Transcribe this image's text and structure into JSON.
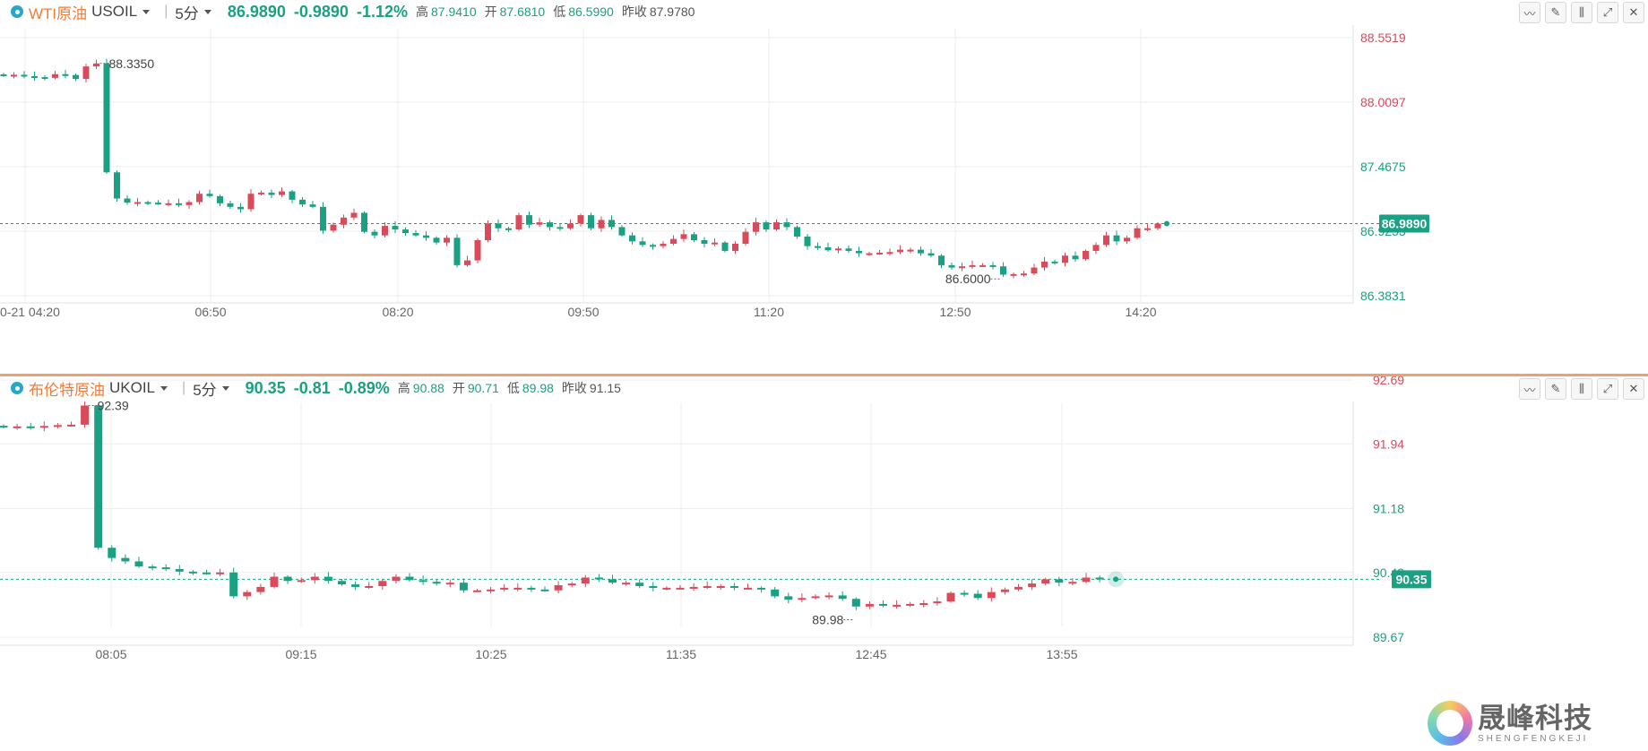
{
  "colors": {
    "up": "#d94a5b",
    "down": "#1aa083",
    "grid": "#eeeeee",
    "accent": "#f07c3a"
  },
  "panels": [
    {
      "name": "WTI原油",
      "code": "USOIL",
      "interval": "5分",
      "price": "86.9890",
      "change": "-0.9890",
      "change_pct": "-1.12%",
      "high_label": "高",
      "high": "87.9410",
      "open_label": "开",
      "open": "87.6810",
      "low_label": "低",
      "low": "86.5990",
      "prev_label": "昨收",
      "prev": "87.9780",
      "current_price_label": "86.9890",
      "max_label": "88.3350",
      "min_label": "86.6000",
      "tools": [
        "indicator-icon",
        "draw-icon",
        "candle-type-icon",
        "fullscreen-icon",
        "close-icon"
      ],
      "chart_data": {
        "type": "candlestick",
        "ylim": [
          86.3831,
          88.5519
        ],
        "y_ticks": [
          "88.5519",
          "88.0097",
          "87.4675",
          "86.9253",
          "86.3831"
        ],
        "x_ticks": [
          "0-21 04:20",
          "06:50",
          "08:20",
          "09:50",
          "11:20",
          "12:50",
          "14:20"
        ],
        "current": 86.989,
        "max_point": 88.335,
        "min_point": 86.6,
        "closes": [
          88.235,
          88.24,
          88.228,
          88.22,
          88.214,
          88.245,
          88.238,
          88.205,
          88.31,
          88.335,
          87.42,
          87.2,
          87.165,
          87.17,
          87.165,
          87.16,
          87.16,
          87.145,
          87.17,
          87.24,
          87.22,
          87.16,
          87.13,
          87.11,
          87.24,
          87.25,
          87.23,
          87.26,
          87.19,
          87.15,
          87.13,
          86.93,
          86.98,
          87.04,
          87.08,
          86.92,
          86.89,
          86.97,
          86.94,
          86.91,
          86.89,
          86.87,
          86.83,
          86.87,
          86.64,
          86.68,
          86.85,
          86.99,
          86.95,
          86.94,
          87.06,
          86.98,
          87.0,
          86.96,
          86.95,
          86.99,
          87.06,
          86.95,
          87.02,
          86.96,
          86.89,
          86.84,
          86.81,
          86.8,
          86.82,
          86.86,
          86.9,
          86.85,
          86.82,
          86.83,
          86.76,
          86.82,
          86.92,
          87.0,
          86.94,
          87.0,
          86.96,
          86.88,
          86.8,
          86.79,
          86.765,
          86.78,
          86.76,
          86.74,
          86.74,
          86.745,
          86.75,
          86.77,
          86.77,
          86.74,
          86.72,
          86.64,
          86.62,
          86.63,
          86.64,
          86.64,
          86.63,
          86.56,
          86.565,
          86.57,
          86.62,
          86.67,
          86.66,
          86.72,
          86.69,
          86.76,
          86.81,
          86.89,
          86.84,
          86.87,
          86.95,
          86.95,
          86.989
        ]
      }
    },
    {
      "name": "布伦特原油",
      "code": "UKOIL",
      "interval": "5分",
      "price": "90.35",
      "change": "-0.81",
      "change_pct": "-0.89%",
      "high_label": "高",
      "high": "90.88",
      "open_label": "开",
      "open": "90.71",
      "low_label": "低",
      "low": "89.98",
      "prev_label": "昨收",
      "prev": "91.15",
      "current_price_label": "90.35",
      "max_label": "92.39",
      "min_label": "89.98",
      "tools": [
        "indicator-icon",
        "draw-icon",
        "candle-type-icon",
        "fullscreen-icon",
        "close-icon"
      ],
      "chart_data": {
        "type": "candlestick",
        "ylim": [
          89.67,
          92.69
        ],
        "y_ticks": [
          "92.69",
          "91.94",
          "91.18",
          "90.43",
          "89.67"
        ],
        "x_ticks": [
          "08:05",
          "09:15",
          "10:25",
          "11:35",
          "12:45",
          "13:55"
        ],
        "current": 90.35,
        "max_point": 92.39,
        "min_point": 89.98,
        "closes": [
          92.14,
          92.145,
          92.13,
          92.15,
          92.16,
          92.165,
          92.39,
          90.72,
          90.6,
          90.56,
          90.5,
          90.49,
          90.47,
          90.44,
          90.43,
          90.42,
          90.43,
          90.15,
          90.2,
          90.26,
          90.38,
          90.33,
          90.34,
          90.38,
          90.33,
          90.29,
          90.26,
          90.27,
          90.33,
          90.38,
          90.34,
          90.32,
          90.3,
          90.31,
          90.22,
          90.22,
          90.23,
          90.25,
          90.25,
          90.23,
          90.22,
          90.28,
          90.3,
          90.37,
          90.35,
          90.31,
          90.31,
          90.27,
          90.25,
          90.25,
          90.25,
          90.26,
          90.27,
          90.27,
          90.25,
          90.25,
          90.23,
          90.15,
          90.11,
          90.13,
          90.15,
          90.16,
          90.12,
          90.03,
          90.06,
          90.04,
          90.05,
          90.06,
          90.07,
          90.09,
          90.19,
          90.18,
          90.13,
          90.2,
          90.23,
          90.26,
          90.3,
          90.35,
          90.31,
          90.32,
          90.37,
          90.35
        ]
      }
    }
  ],
  "watermark": {
    "cn": "晟峰科技",
    "en": "SHENGFENGKEJI"
  }
}
